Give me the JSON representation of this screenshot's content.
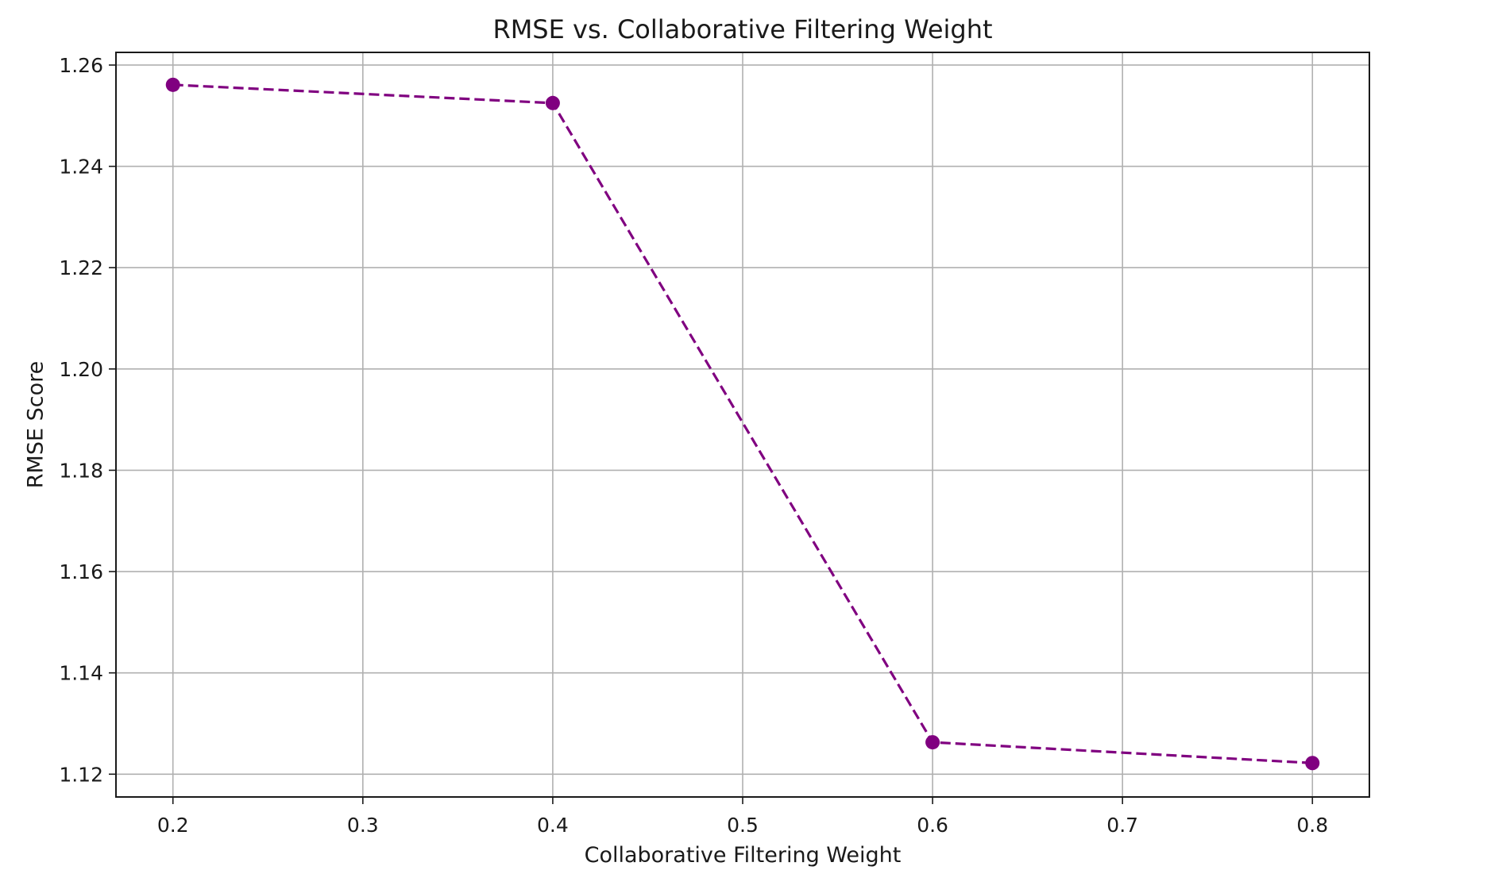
{
  "chart_data": {
    "type": "line",
    "title": "RMSE vs. Collaborative Filtering Weight",
    "xlabel": "Collaborative Filtering Weight",
    "ylabel": "RMSE Score",
    "xlim": [
      0.17,
      0.83
    ],
    "ylim": [
      1.1155,
      1.2625
    ],
    "xticks": [
      0.2,
      0.3,
      0.4,
      0.5,
      0.6,
      0.7,
      0.8
    ],
    "xtick_labels": [
      "0.2",
      "0.3",
      "0.4",
      "0.5",
      "0.6",
      "0.7",
      "0.8"
    ],
    "yticks": [
      1.12,
      1.14,
      1.16,
      1.18,
      1.2,
      1.22,
      1.24,
      1.26
    ],
    "ytick_labels": [
      "1.12",
      "1.14",
      "1.16",
      "1.18",
      "1.20",
      "1.22",
      "1.24",
      "1.26"
    ],
    "grid": true,
    "series": [
      {
        "x": [
          0.2,
          0.4,
          0.6,
          0.8
        ],
        "y": [
          1.2561,
          1.2525,
          1.1263,
          1.1222
        ],
        "color": "#800080",
        "line_style": "dashed",
        "marker": "circle"
      }
    ]
  }
}
